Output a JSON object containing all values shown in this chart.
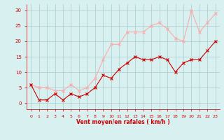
{
  "x": [
    0,
    1,
    2,
    3,
    4,
    5,
    6,
    7,
    8,
    9,
    10,
    11,
    12,
    13,
    14,
    15,
    16,
    17,
    18,
    19,
    20,
    21,
    22,
    23
  ],
  "wind_avg": [
    6,
    1,
    1,
    3,
    1,
    3,
    2,
    3,
    5,
    9,
    8,
    11,
    13,
    15,
    14,
    14,
    15,
    14,
    10,
    13,
    14,
    14,
    17,
    20
  ],
  "wind_gust": [
    6,
    5,
    5,
    4,
    4,
    6,
    4,
    5,
    8,
    14,
    19,
    19,
    23,
    23,
    23,
    25,
    26,
    24,
    21,
    20,
    30,
    23,
    26,
    29
  ],
  "line_avg_color": "#cc0000",
  "line_gust_color": "#ffaaaa",
  "bg_color": "#d8f0f0",
  "grid_color": "#aacccc",
  "xlabel": "Vent moyen/en rafales ( km/h )",
  "tick_color": "#cc0000",
  "yticks": [
    0,
    5,
    10,
    15,
    20,
    25,
    30
  ],
  "ylim": [
    -2,
    32
  ],
  "xlim": [
    -0.5,
    23.5
  ]
}
